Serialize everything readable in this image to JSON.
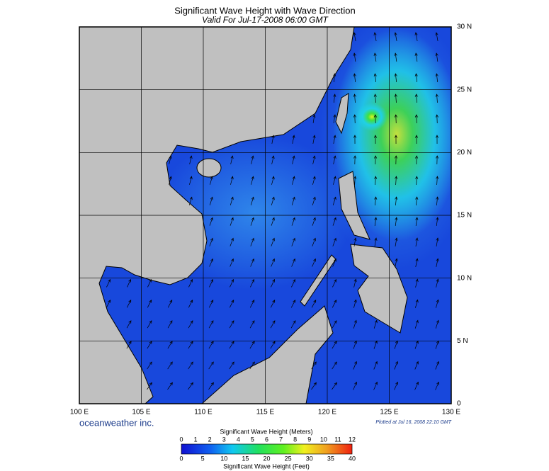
{
  "title": "Significant Wave Height with Wave Direction",
  "subtitle": "Valid For Jul-17-2008 06:00 GMT",
  "map": {
    "lon_labels": [
      "100 E",
      "105 E",
      "110 E",
      "115 E",
      "120 E",
      "125 E",
      "130 E"
    ],
    "lat_labels": [
      "0",
      "5 N",
      "10 N",
      "15 N",
      "20 N",
      "25 N",
      "30 N"
    ],
    "credit": "oceanweather inc.",
    "plotted": "Plotted at Jul 16, 2008 22:10 GMT"
  },
  "colorbar": {
    "meters_title": "Significant Wave Height (Meters)",
    "meters_ticks": [
      0,
      1,
      2,
      3,
      4,
      5,
      6,
      7,
      8,
      9,
      10,
      11,
      12
    ],
    "feet_ticks": [
      0,
      5,
      10,
      15,
      20,
      25,
      30,
      35,
      40
    ],
    "feet_title": "Significant Wave Height (Feet)"
  }
}
